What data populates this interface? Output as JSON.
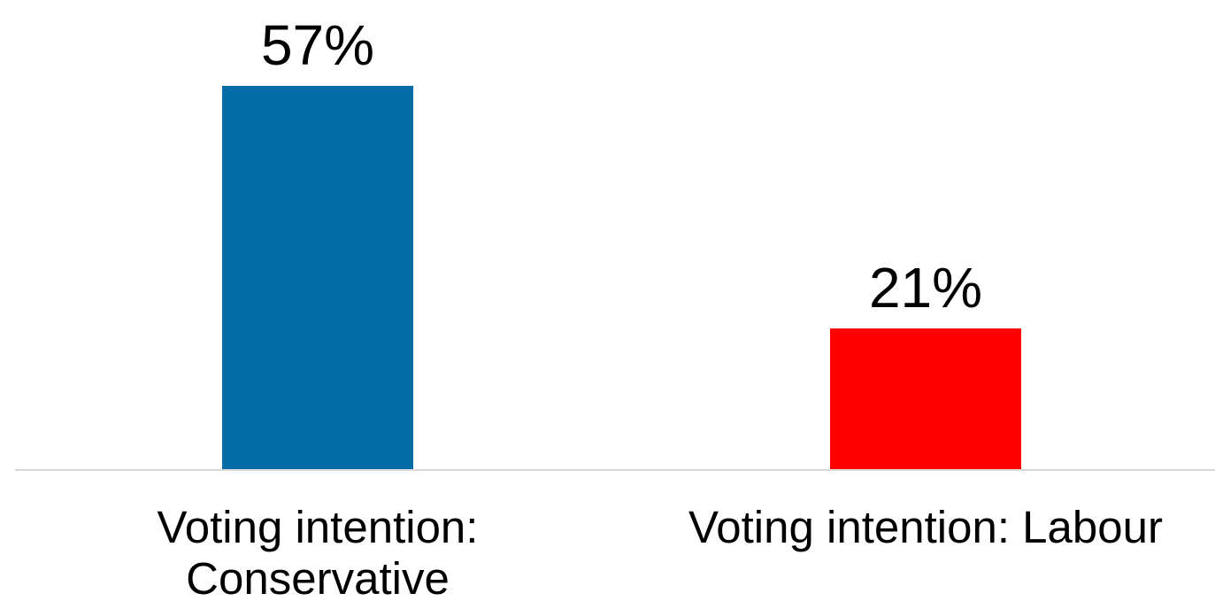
{
  "chart_data": {
    "type": "bar",
    "categories": [
      [
        "Voting intention:",
        "Conservative"
      ],
      [
        "Voting intention: Labour"
      ]
    ],
    "values": [
      57,
      21
    ],
    "data_labels": [
      "57%",
      "21%"
    ],
    "colors": [
      "#036BA5",
      "#FF0000"
    ],
    "axis_color": "#D9D9D9",
    "title": "",
    "xlabel": "",
    "ylabel": "",
    "ylim": [
      0,
      57
    ],
    "grid": false,
    "legend": "none"
  }
}
